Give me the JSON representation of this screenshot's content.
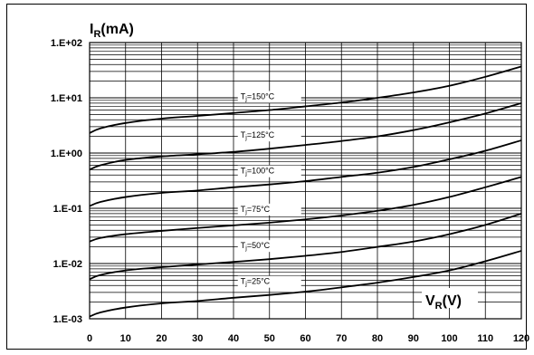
{
  "chart_data": {
    "type": "line",
    "title": "",
    "ylabel_main": "I",
    "ylabel_sub": "R",
    "ylabel_unit": "(mA)",
    "xlabel_main": "V",
    "xlabel_sub": "R",
    "xlabel_unit": "(V)",
    "xlim": [
      0,
      120
    ],
    "ylim": [
      0.001,
      100
    ],
    "yscale": "log",
    "grid": true,
    "x_ticks": [
      0,
      10,
      20,
      30,
      40,
      50,
      60,
      70,
      80,
      90,
      100,
      110,
      120
    ],
    "x_tick_labels": [
      "0",
      "10",
      "20",
      "30",
      "40",
      "50",
      "60",
      "70",
      "80",
      "90",
      "100",
      "110",
      "120"
    ],
    "y_ticks": [
      100,
      10,
      1,
      0.1,
      0.01,
      0.001
    ],
    "y_tick_labels": [
      "1.E+02",
      "1.E+01",
      "1.E+00",
      "1.E-01",
      "1.E-02",
      "1.E-03"
    ],
    "series": [
      {
        "name": "Tj=150°C",
        "label_main": "T",
        "label_sub": "j",
        "label_rest": "=150°C",
        "x": [
          0,
          3,
          10,
          20,
          30,
          40,
          50,
          60,
          70,
          80,
          90,
          100,
          110,
          120
        ],
        "y": [
          2.3,
          2.8,
          3.5,
          4.2,
          4.7,
          5.3,
          6.0,
          7.0,
          8.2,
          10,
          12.5,
          16.5,
          24,
          37
        ]
      },
      {
        "name": "Tj=125°C",
        "label_main": "T",
        "label_sub": "j",
        "label_rest": "=125°C",
        "x": [
          0,
          3,
          10,
          20,
          30,
          40,
          50,
          60,
          70,
          80,
          90,
          100,
          110,
          120
        ],
        "y": [
          0.5,
          0.6,
          0.75,
          0.87,
          0.95,
          1.05,
          1.2,
          1.4,
          1.65,
          2.0,
          2.6,
          3.6,
          5.2,
          8.0
        ]
      },
      {
        "name": "Tj=100°C",
        "label_main": "T",
        "label_sub": "j",
        "label_rest": "=100°C",
        "x": [
          0,
          3,
          10,
          20,
          30,
          40,
          50,
          60,
          70,
          80,
          90,
          100,
          110,
          120
        ],
        "y": [
          0.11,
          0.13,
          0.16,
          0.19,
          0.21,
          0.24,
          0.27,
          0.31,
          0.37,
          0.44,
          0.56,
          0.77,
          1.1,
          1.7
        ]
      },
      {
        "name": "Tj=75°C",
        "label_main": "T",
        "label_sub": "j",
        "label_rest": "=75°C",
        "x": [
          0,
          3,
          10,
          20,
          30,
          40,
          50,
          60,
          70,
          80,
          90,
          100,
          110,
          120
        ],
        "y": [
          0.025,
          0.029,
          0.034,
          0.039,
          0.044,
          0.049,
          0.055,
          0.063,
          0.074,
          0.09,
          0.115,
          0.16,
          0.24,
          0.37
        ]
      },
      {
        "name": "Tj=50°C",
        "label_main": "T",
        "label_sub": "j",
        "label_rest": "=50°C",
        "x": [
          0,
          3,
          10,
          20,
          30,
          40,
          50,
          60,
          70,
          80,
          90,
          100,
          110,
          120
        ],
        "y": [
          0.0052,
          0.0062,
          0.0075,
          0.0086,
          0.0096,
          0.0107,
          0.012,
          0.0138,
          0.0162,
          0.02,
          0.025,
          0.034,
          0.05,
          0.08
        ]
      },
      {
        "name": "Tj=25°C",
        "label_main": "T",
        "label_sub": "j",
        "label_rest": "=25°C",
        "x": [
          0,
          3,
          10,
          20,
          30,
          40,
          50,
          60,
          70,
          80,
          90,
          100,
          110,
          120
        ],
        "y": [
          0.0011,
          0.0013,
          0.0016,
          0.0019,
          0.0021,
          0.0024,
          0.0027,
          0.0031,
          0.0037,
          0.0045,
          0.0057,
          0.0075,
          0.011,
          0.017
        ]
      }
    ]
  }
}
